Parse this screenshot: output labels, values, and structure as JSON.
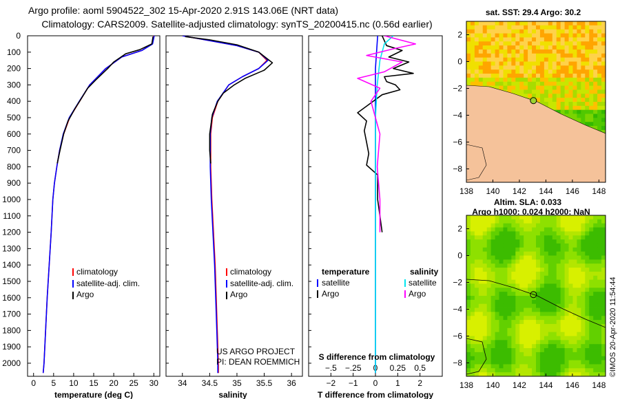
{
  "title": {
    "line1": "Argo profile: aoml 5904522_302 15-Apr-2020 2.91S 143.06E (NRT data)",
    "line2": "Climatology: CARS2009. Satellite-adjusted climatology: synTS_20200415.nc (0.56d earlier)"
  },
  "colors": {
    "climatology": "#ff0000",
    "satellite": "#0000ff",
    "argo": "#000000",
    "sal_satellite": "#00e5ee",
    "sal_argo": "#ff00ff",
    "land": "#f5c29a",
    "marker": "#9cd330"
  },
  "watermark": "©IMOS 20-Apr-2020 11:54:44",
  "credits": [
    "US ARGO PROJECT",
    "PI: DEAN ROEMMICH"
  ],
  "chart_data": [
    {
      "type": "line",
      "xlabel": "temperature (deg C)",
      "ylabel": "",
      "xlim": [
        -1.5,
        31.5
      ],
      "ylim": [
        0,
        2080
      ],
      "y_reversed": true,
      "xticks": [
        0,
        5,
        10,
        15,
        20,
        25,
        30
      ],
      "yticks": [
        0,
        100,
        200,
        300,
        400,
        500,
        600,
        700,
        800,
        900,
        1000,
        1100,
        1200,
        1300,
        1400,
        1500,
        1600,
        1700,
        1800,
        1900,
        2000
      ],
      "legend": [
        "climatology",
        "satellite-adj. clim.",
        "Argo"
      ],
      "series": [
        {
          "name": "climatology",
          "color": "#ff0000",
          "points": [
            [
              30,
              0
            ],
            [
              29.6,
              50
            ],
            [
              27,
              90
            ],
            [
              22,
              130
            ],
            [
              18,
              200
            ],
            [
              14,
              300
            ],
            [
              11.5,
              400
            ],
            [
              9,
              500
            ],
            [
              7.5,
              600
            ],
            [
              6.5,
              700
            ],
            [
              5.8,
              800
            ],
            [
              5.2,
              900
            ],
            [
              4.8,
              1000
            ],
            [
              4.4,
              1200
            ],
            [
              3.9,
              1400
            ],
            [
              3.4,
              1600
            ],
            [
              3,
              1800
            ],
            [
              2.6,
              2000
            ],
            [
              2.4,
              2060
            ]
          ]
        },
        {
          "name": "satellite-adj. clim.",
          "color": "#0000ff",
          "points": [
            [
              30.1,
              0
            ],
            [
              29.7,
              50
            ],
            [
              27,
              90
            ],
            [
              22,
              130
            ],
            [
              18,
              200
            ],
            [
              14,
              300
            ],
            [
              11.4,
              400
            ],
            [
              8.9,
              500
            ],
            [
              7.4,
              600
            ],
            [
              6.5,
              700
            ],
            [
              5.8,
              800
            ],
            [
              5.2,
              900
            ],
            [
              4.8,
              1000
            ],
            [
              4.4,
              1200
            ],
            [
              3.9,
              1400
            ],
            [
              3.4,
              1600
            ],
            [
              3,
              1800
            ],
            [
              2.6,
              2000
            ],
            [
              2.4,
              2060
            ]
          ]
        },
        {
          "name": "Argo",
          "color": "#000000",
          "points": [
            [
              29.8,
              5
            ],
            [
              29.5,
              50
            ],
            [
              26.5,
              85
            ],
            [
              23,
              110
            ],
            [
              20,
              160
            ],
            [
              18.5,
              200
            ],
            [
              15.5,
              270
            ],
            [
              13.5,
              320
            ],
            [
              12,
              380
            ],
            [
              10.2,
              450
            ],
            [
              8.6,
              520
            ],
            [
              7.5,
              600
            ],
            [
              6.6,
              700
            ],
            [
              5.9,
              780
            ]
          ]
        }
      ]
    },
    {
      "type": "line",
      "xlabel": "salinity",
      "ylabel": "",
      "xlim": [
        33.7,
        36.2
      ],
      "ylim": [
        0,
        2080
      ],
      "y_reversed": true,
      "xticks": [
        34,
        34.5,
        35,
        35.5,
        36
      ],
      "legend": [
        "climatology",
        "satellite-adj. clim.",
        "Argo"
      ],
      "series": [
        {
          "name": "climatology",
          "color": "#ff0000",
          "points": [
            [
              34,
              0
            ],
            [
              34.5,
              30
            ],
            [
              35,
              60
            ],
            [
              35.4,
              100
            ],
            [
              35.55,
              150
            ],
            [
              35.4,
              200
            ],
            [
              35.1,
              250
            ],
            [
              34.85,
              300
            ],
            [
              34.65,
              400
            ],
            [
              34.55,
              500
            ],
            [
              34.52,
              600
            ],
            [
              34.52,
              800
            ],
            [
              34.54,
              1000
            ],
            [
              34.57,
              1200
            ],
            [
              34.6,
              1400
            ],
            [
              34.62,
              1600
            ],
            [
              34.64,
              1800
            ],
            [
              34.66,
              2000
            ],
            [
              34.66,
              2060
            ]
          ]
        },
        {
          "name": "satellite-adj. clim.",
          "color": "#0000ff",
          "points": [
            [
              34,
              0
            ],
            [
              34.5,
              30
            ],
            [
              35,
              60
            ],
            [
              35.4,
              100
            ],
            [
              35.57,
              150
            ],
            [
              35.4,
              200
            ],
            [
              35.1,
              250
            ],
            [
              34.85,
              300
            ],
            [
              34.64,
              400
            ],
            [
              34.54,
              500
            ],
            [
              34.51,
              600
            ],
            [
              34.51,
              800
            ],
            [
              34.53,
              1000
            ],
            [
              34.56,
              1200
            ],
            [
              34.59,
              1400
            ],
            [
              34.61,
              1600
            ],
            [
              34.63,
              1800
            ],
            [
              34.65,
              2000
            ],
            [
              34.65,
              2060
            ]
          ]
        },
        {
          "name": "Argo",
          "color": "#000000",
          "points": [
            [
              34.05,
              5
            ],
            [
              34.5,
              25
            ],
            [
              35,
              55
            ],
            [
              35.4,
              100
            ],
            [
              35.65,
              165
            ],
            [
              35.5,
              210
            ],
            [
              35.15,
              260
            ],
            [
              34.95,
              300
            ],
            [
              34.75,
              350
            ],
            [
              34.65,
              400
            ],
            [
              34.55,
              480
            ],
            [
              34.5,
              600
            ],
            [
              34.5,
              700
            ],
            [
              34.52,
              780
            ]
          ]
        }
      ]
    },
    {
      "type": "line",
      "xlabel": "T difference from climatology",
      "xlabel_top": "S difference from climatology",
      "xlim": [
        -3,
        3
      ],
      "xlim_top": [
        -0.75,
        0.75
      ],
      "ylim": [
        0,
        2080
      ],
      "y_reversed": true,
      "xticks": [
        -2,
        -1,
        0,
        1,
        2
      ],
      "xticks_top": [
        -0.5,
        -0.25,
        0,
        0.25,
        0.5
      ],
      "legend_headers": [
        "temperature",
        "salinity"
      ],
      "legend": [
        "satellite",
        "Argo",
        "satellite",
        "Argo"
      ],
      "series": [
        {
          "name": "temperature satellite",
          "color": "#0000ff",
          "points": [
            [
              0.1,
              0
            ],
            [
              0.05,
              100
            ],
            [
              0,
              200
            ],
            [
              0,
              400
            ],
            [
              0,
              600
            ],
            [
              0,
              1200
            ],
            [
              0,
              2060
            ]
          ]
        },
        {
          "name": "temperature Argo",
          "color": "#000000",
          "points": [
            [
              0.3,
              0
            ],
            [
              0.5,
              60
            ],
            [
              1.2,
              90
            ],
            [
              0.6,
              130
            ],
            [
              1.5,
              160
            ],
            [
              0.8,
              200
            ],
            [
              1.7,
              230
            ],
            [
              0.4,
              250
            ],
            [
              0.5,
              280
            ],
            [
              0.9,
              300
            ],
            [
              1.1,
              330
            ],
            [
              0.3,
              360
            ],
            [
              -0.3,
              420
            ],
            [
              -0.8,
              470
            ],
            [
              -0.4,
              520
            ],
            [
              -0.5,
              580
            ],
            [
              -0.4,
              650
            ],
            [
              -0.3,
              720
            ],
            [
              -0.4,
              790
            ],
            [
              0.1,
              850
            ],
            [
              0.1,
              1000
            ],
            [
              0.2,
              1100
            ],
            [
              0.3,
              1200
            ]
          ]
        },
        {
          "name": "salinity satellite",
          "color": "#00e5ee",
          "points": [
            [
              0.2,
              0
            ],
            [
              0.1,
              50
            ],
            [
              0.05,
              150
            ],
            [
              0.02,
              300
            ],
            [
              0,
              500
            ],
            [
              0,
              1000
            ],
            [
              0,
              2060
            ]
          ]
        },
        {
          "name": "salinity Argo",
          "color": "#ff00ff",
          "points": [
            [
              0.1,
              0
            ],
            [
              0.45,
              50
            ],
            [
              0.2,
              80
            ],
            [
              -0.1,
              120
            ],
            [
              0.3,
              160
            ],
            [
              0.1,
              220
            ],
            [
              -0.2,
              260
            ],
            [
              0.05,
              320
            ],
            [
              -0.05,
              400
            ],
            [
              0,
              500
            ],
            [
              0.05,
              600
            ],
            [
              0.02,
              800
            ],
            [
              0.05,
              1000
            ],
            [
              0.05,
              1200
            ]
          ]
        }
      ]
    },
    {
      "type": "heatmap",
      "title": "sat. SST: 29.4 Argo: 30.2",
      "xlim": [
        138,
        148.5
      ],
      "ylim": [
        -9,
        3
      ],
      "xticks": [
        138,
        140,
        142,
        144,
        146,
        148
      ],
      "yticks": [
        2,
        0,
        -2,
        -4,
        -6,
        -8
      ],
      "marker": {
        "lon": 143.06,
        "lat": -2.91
      }
    },
    {
      "type": "heatmap",
      "title": "Altim. SLA: 0.033",
      "subtitle": "Argo h1000: 0.024 h2000: NaN",
      "xlim": [
        138,
        148.5
      ],
      "ylim": [
        -9,
        3
      ],
      "xticks": [
        138,
        140,
        142,
        144,
        146,
        148
      ],
      "yticks": [
        2,
        0,
        -2,
        -4,
        -6,
        -8
      ],
      "marker": {
        "lon": 143.06,
        "lat": -2.91
      }
    }
  ]
}
